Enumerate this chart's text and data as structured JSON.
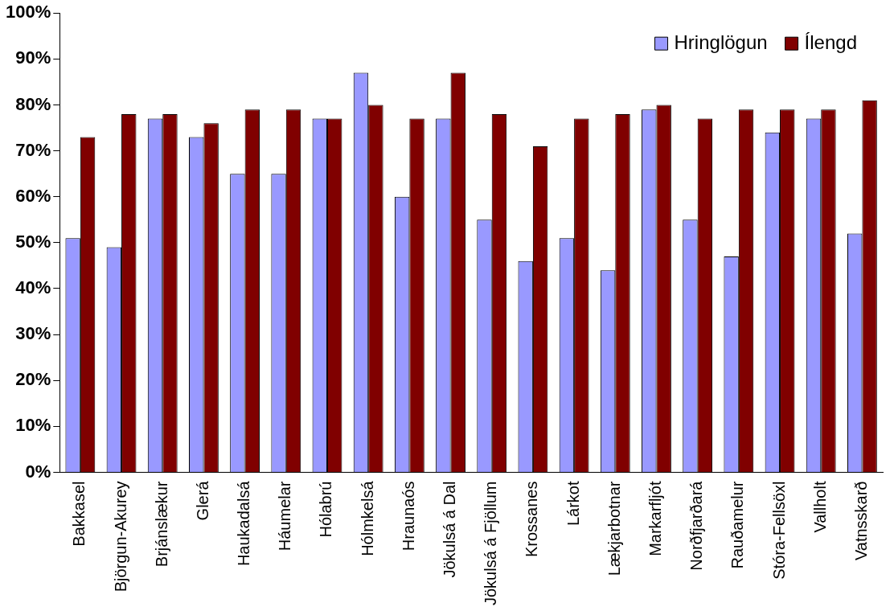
{
  "chart_data": {
    "type": "bar",
    "categories": [
      "Bakkasel",
      "Björgun-Akurey",
      "Brjánslækur",
      "Glerá",
      "Haukadalsá",
      "Háumelar",
      "Hólabrú",
      "Hólmkelsá",
      "Hraunaós",
      "Jökulsá á Dal",
      "Jökulsá á Fjöllum",
      "Krossanes",
      "Lárkot",
      "Lækjarbotnar",
      "Markarfljót",
      "Norðfjarðará",
      "Rauðamelur",
      "Stóra-Fellsöxl",
      "Vallholt",
      "Vatnsskarð"
    ],
    "series": [
      {
        "name": "Hringlögun",
        "color": "#9999ff",
        "values": [
          51,
          49,
          77,
          73,
          65,
          65,
          77,
          87,
          60,
          77,
          55,
          46,
          51,
          44,
          79,
          55,
          47,
          74,
          77,
          52
        ]
      },
      {
        "name": "Ílengd",
        "color": "#800000",
        "values": [
          73,
          78,
          78,
          76,
          79,
          79,
          77,
          80,
          77,
          87,
          78,
          71,
          77,
          78,
          80,
          77,
          79,
          79,
          79,
          81
        ]
      }
    ],
    "ylim": [
      0,
      100
    ],
    "yticks": [
      {
        "value": 0,
        "label": "0%"
      },
      {
        "value": 10,
        "label": "10%"
      },
      {
        "value": 20,
        "label": "20%"
      },
      {
        "value": 30,
        "label": "30%"
      },
      {
        "value": 40,
        "label": "40%"
      },
      {
        "value": 50,
        "label": "50%"
      },
      {
        "value": 60,
        "label": "60%"
      },
      {
        "value": 70,
        "label": "70%"
      },
      {
        "value": 80,
        "label": "80%"
      },
      {
        "value": 90,
        "label": "90%"
      },
      {
        "value": 100,
        "label": "100%"
      }
    ],
    "grid": false,
    "legend": "top right"
  }
}
